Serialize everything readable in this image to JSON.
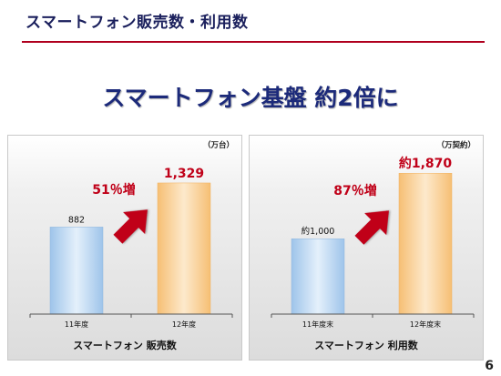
{
  "slide": {
    "title": "スマートフォン販売数・利用数",
    "headline": "スマートフォン基盤 約2倍に",
    "page_number": "6",
    "colors": {
      "title": "#1a1f5c",
      "rule": "#b0001e",
      "headline": "#1c2a7a",
      "growth": "#c00018"
    }
  },
  "chart_data": [
    {
      "type": "bar",
      "title": "スマートフォン 販売数",
      "unit": "（万台）",
      "categories": [
        "11年度",
        "12年度"
      ],
      "values": [
        882,
        1329
      ],
      "value_labels": [
        "882",
        "1,329"
      ],
      "growth_label": "51％増",
      "ylim": [
        0,
        1550
      ],
      "grid": false,
      "colors": [
        "#b5d3ef",
        "#f9cd90"
      ]
    },
    {
      "type": "bar",
      "title": "スマートフォン 利用数",
      "unit": "（万契約）",
      "categories": [
        "11年度末",
        "12年度末"
      ],
      "values": [
        1000,
        1870
      ],
      "value_labels": [
        "約1,000",
        "約1,870"
      ],
      "growth_label": "87％増",
      "ylim": [
        0,
        2030
      ],
      "grid": false,
      "colors": [
        "#b5d3ef",
        "#f9cd90"
      ]
    }
  ]
}
